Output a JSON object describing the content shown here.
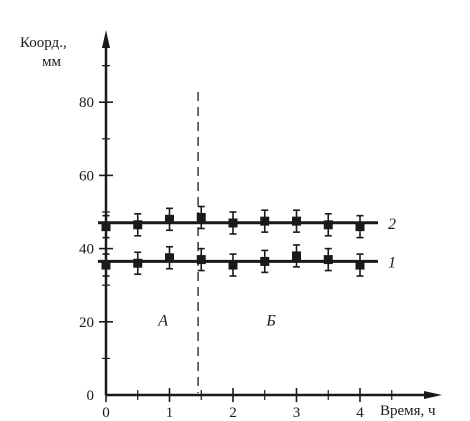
{
  "chart_data": {
    "type": "line",
    "ylabel_line1": "Коорд.,",
    "ylabel_line2": "мм",
    "xlabel": "Время, ч",
    "xlim": [
      0,
      4.5
    ],
    "ylim": [
      0,
      100
    ],
    "x_ticks": [
      0,
      1,
      2,
      3,
      4
    ],
    "y_ticks": [
      20,
      40,
      60,
      80
    ],
    "y_zero_label": "0",
    "grid": false,
    "regions": [
      {
        "label": "А",
        "x": 0.9,
        "y": 19
      },
      {
        "label": "Б",
        "x": 2.6,
        "y": 19
      }
    ],
    "divider_x": 1.45,
    "series": [
      {
        "name": "1",
        "x": [
          0,
          0.5,
          1,
          1.5,
          2,
          2.5,
          3,
          3.5,
          4
        ],
        "y": [
          35.5,
          36,
          37.5,
          37,
          35.5,
          36.5,
          38,
          37,
          35.5
        ],
        "err": [
          3,
          3,
          3,
          3,
          3,
          3,
          3,
          3,
          3
        ]
      },
      {
        "name": "2",
        "x": [
          0,
          0.5,
          1,
          1.5,
          2,
          2.5,
          3,
          3.5,
          4
        ],
        "y": [
          46,
          46.5,
          48,
          48.5,
          47,
          47.5,
          47.5,
          46.5,
          46
        ],
        "err": [
          3,
          3,
          3,
          3,
          3,
          3,
          3,
          3,
          3
        ]
      }
    ]
  }
}
